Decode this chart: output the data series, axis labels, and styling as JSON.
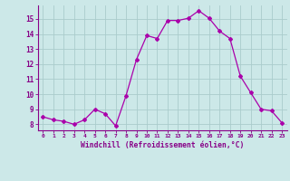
{
  "x": [
    0,
    1,
    2,
    3,
    4,
    5,
    6,
    7,
    8,
    9,
    10,
    11,
    12,
    13,
    14,
    15,
    16,
    17,
    18,
    19,
    20,
    21,
    22,
    23
  ],
  "y": [
    8.5,
    8.3,
    8.2,
    8.0,
    8.3,
    9.0,
    8.7,
    7.9,
    9.9,
    12.3,
    13.9,
    13.7,
    14.9,
    14.9,
    15.05,
    15.55,
    15.05,
    14.2,
    13.7,
    11.2,
    10.1,
    9.0,
    8.9,
    8.1
  ],
  "line_color": "#aa00aa",
  "marker": "D",
  "marker_size": 2.0,
  "bg_color": "#cce8e8",
  "grid_color": "#b0d0d0",
  "xlabel": "Windchill (Refroidissement éolien,°C)",
  "xlabel_color": "#880088",
  "tick_color": "#880088",
  "xlim": [
    -0.5,
    23.5
  ],
  "ylim": [
    7.6,
    15.9
  ],
  "yticks": [
    8,
    9,
    10,
    11,
    12,
    13,
    14,
    15
  ],
  "xticks": [
    0,
    1,
    2,
    3,
    4,
    5,
    6,
    7,
    8,
    9,
    10,
    11,
    12,
    13,
    14,
    15,
    16,
    17,
    18,
    19,
    20,
    21,
    22,
    23
  ],
  "xtick_labels": [
    "0",
    "1",
    "2",
    "3",
    "4",
    "5",
    "6",
    "7",
    "8",
    "9",
    "10",
    "11",
    "12",
    "13",
    "14",
    "15",
    "16",
    "17",
    "18",
    "19",
    "20",
    "21",
    "22",
    "23"
  ]
}
